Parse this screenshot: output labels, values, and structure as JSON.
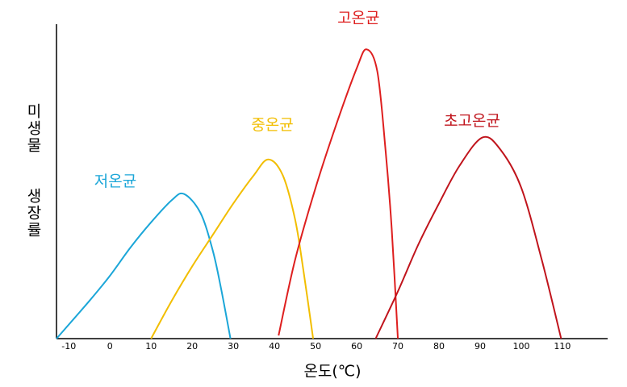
{
  "chart_data": {
    "type": "line",
    "x_label": "온도(℃)",
    "y_label": "미생물 생장률",
    "xlim": [
      -13,
      121
    ],
    "ylim": [
      0,
      100
    ],
    "xticks": [
      -10,
      0,
      10,
      20,
      30,
      40,
      50,
      60,
      70,
      80,
      90,
      100,
      110
    ],
    "series": [
      {
        "name": "저온균",
        "color": "#1ba6d8",
        "x": [
          -13,
          -5,
          0,
          5,
          10,
          15,
          18,
          22,
          25,
          27,
          29.3
        ],
        "values": [
          0,
          12,
          20,
          29,
          37,
          44,
          46,
          40,
          28,
          16,
          0
        ]
      },
      {
        "name": "중온균",
        "color": "#f2be00",
        "x": [
          10,
          15,
          20,
          25,
          30,
          35,
          38.5,
          42,
          45,
          47,
          49.4
        ],
        "values": [
          0,
          12,
          23,
          33,
          43,
          52,
          57,
          52,
          38,
          22,
          0
        ]
      },
      {
        "name": "고온균",
        "color": "#de1f1f",
        "x": [
          41,
          45,
          50,
          55,
          60,
          62.4,
          65,
          67,
          68.5,
          70
        ],
        "values": [
          1,
          25,
          48,
          68,
          86,
          92,
          85,
          60,
          35,
          0
        ]
      },
      {
        "name": "초고온균",
        "color": "#c0141c",
        "x": [
          64.6,
          70,
          75,
          80,
          85,
          90.6,
          95,
          100,
          105,
          109.7
        ],
        "values": [
          0,
          15,
          30,
          43,
          55,
          64,
          60,
          48,
          25,
          0
        ]
      }
    ]
  }
}
